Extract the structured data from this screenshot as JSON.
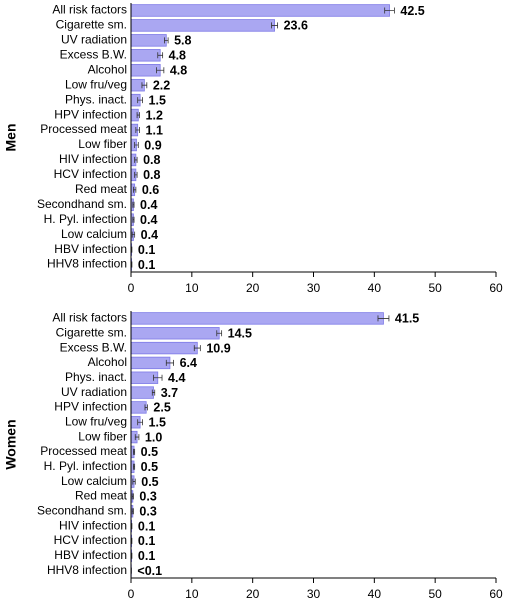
{
  "chart_data": [
    {
      "type": "hbar",
      "ylabel": "Men",
      "categories": [
        "All risk factors",
        "Cigarette sm.",
        "UV radiation",
        "Excess B.W.",
        "Alcohol",
        "Low fru/veg",
        "Phys. inact.",
        "HPV infection",
        "Processed meat",
        "Low fiber",
        "HIV infection",
        "HCV infection",
        "Red meat",
        "Secondhand sm.",
        "H. Pyl. infection",
        "Low calcium",
        "HBV infection",
        "HHV8 infection"
      ],
      "values": [
        42.5,
        23.6,
        5.8,
        4.8,
        4.8,
        2.2,
        1.5,
        1.2,
        1.1,
        0.9,
        0.8,
        0.8,
        0.6,
        0.4,
        0.4,
        0.4,
        0.1,
        0.1
      ],
      "errors": [
        0.8,
        0.5,
        0.3,
        0.4,
        0.6,
        0.4,
        0.4,
        0.2,
        0.3,
        0.3,
        0.2,
        0.2,
        0.2,
        0.1,
        0.1,
        0.2,
        0.05,
        0.05
      ],
      "color": "#aaa7f2",
      "xlim": [
        0,
        60
      ],
      "xticks": [
        0,
        10,
        20,
        30,
        40,
        50,
        60
      ]
    },
    {
      "type": "hbar",
      "ylabel": "Women",
      "categories": [
        "All risk factors",
        "Cigarette sm.",
        "Excess B.W.",
        "Alcohol",
        "Phys. inact.",
        "UV radiation",
        "HPV infection",
        "Low fru/veg",
        "Low fiber",
        "Processed meat",
        "H. Pyl. infection",
        "Low calcium",
        "Red meat",
        "Secondhand sm.",
        "HIV infection",
        "HCV infection",
        "HBV infection",
        "HHV8 infection"
      ],
      "values": [
        41.5,
        14.5,
        10.9,
        6.4,
        4.4,
        3.7,
        2.5,
        1.5,
        1.0,
        0.5,
        0.5,
        0.5,
        0.3,
        0.3,
        0.1,
        0.1,
        0.1,
        0.05
      ],
      "value_labels": [
        "41.5",
        "14.5",
        "10.9",
        "6.4",
        "4.4",
        "3.7",
        "2.5",
        "1.5",
        "1.0",
        "0.5",
        "0.5",
        "0.5",
        "0.3",
        "0.3",
        "0.1",
        "0.1",
        "0.1",
        "<0.1"
      ],
      "errors": [
        0.9,
        0.4,
        0.5,
        0.6,
        0.7,
        0.2,
        0.2,
        0.4,
        0.3,
        0.1,
        0.1,
        0.2,
        0.1,
        0.1,
        0.05,
        0.05,
        0.05,
        0.02
      ],
      "color": "#aaa7f2",
      "xlim": [
        0,
        60
      ],
      "xticks": [
        0,
        10,
        20,
        30,
        40,
        50,
        60
      ]
    }
  ]
}
